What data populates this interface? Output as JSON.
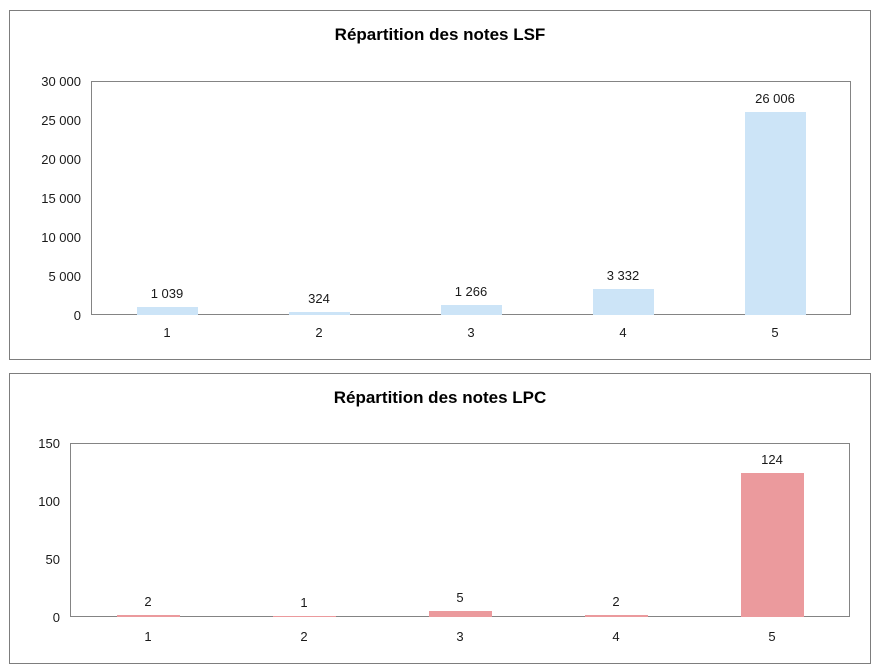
{
  "page": {
    "background_color": "#ffffff",
    "panel_border_color": "#7d7d7d",
    "axis_color": "#848484",
    "text_color": "#1a1a1a"
  },
  "chart_data": [
    {
      "type": "bar",
      "title": "Répartition des notes LSF",
      "categories": [
        "1",
        "2",
        "3",
        "4",
        "5"
      ],
      "values": [
        1039,
        324,
        1266,
        3332,
        26006
      ],
      "value_labels": [
        "1 039",
        "324",
        "1 266",
        "3 332",
        "26 006"
      ],
      "y_ticks": [
        "30 000",
        "25 000",
        "20 000",
        "15 000",
        "10 000",
        "5 000",
        "0"
      ],
      "ylim": [
        0,
        30000
      ],
      "grid": true,
      "legend": "none",
      "bar_color": "#CCE4F7",
      "xlabel": "",
      "ylabel": ""
    },
    {
      "type": "bar",
      "title": "Répartition des notes LPC",
      "categories": [
        "1",
        "2",
        "3",
        "4",
        "5"
      ],
      "values": [
        2,
        1,
        5,
        2,
        124
      ],
      "value_labels": [
        "2",
        "1",
        "5",
        "2",
        "124"
      ],
      "y_ticks": [
        "150",
        "100",
        "50",
        "0"
      ],
      "ylim": [
        0,
        150
      ],
      "grid": true,
      "legend": "none",
      "bar_color": "#EB9A9D",
      "xlabel": "",
      "ylabel": ""
    }
  ]
}
